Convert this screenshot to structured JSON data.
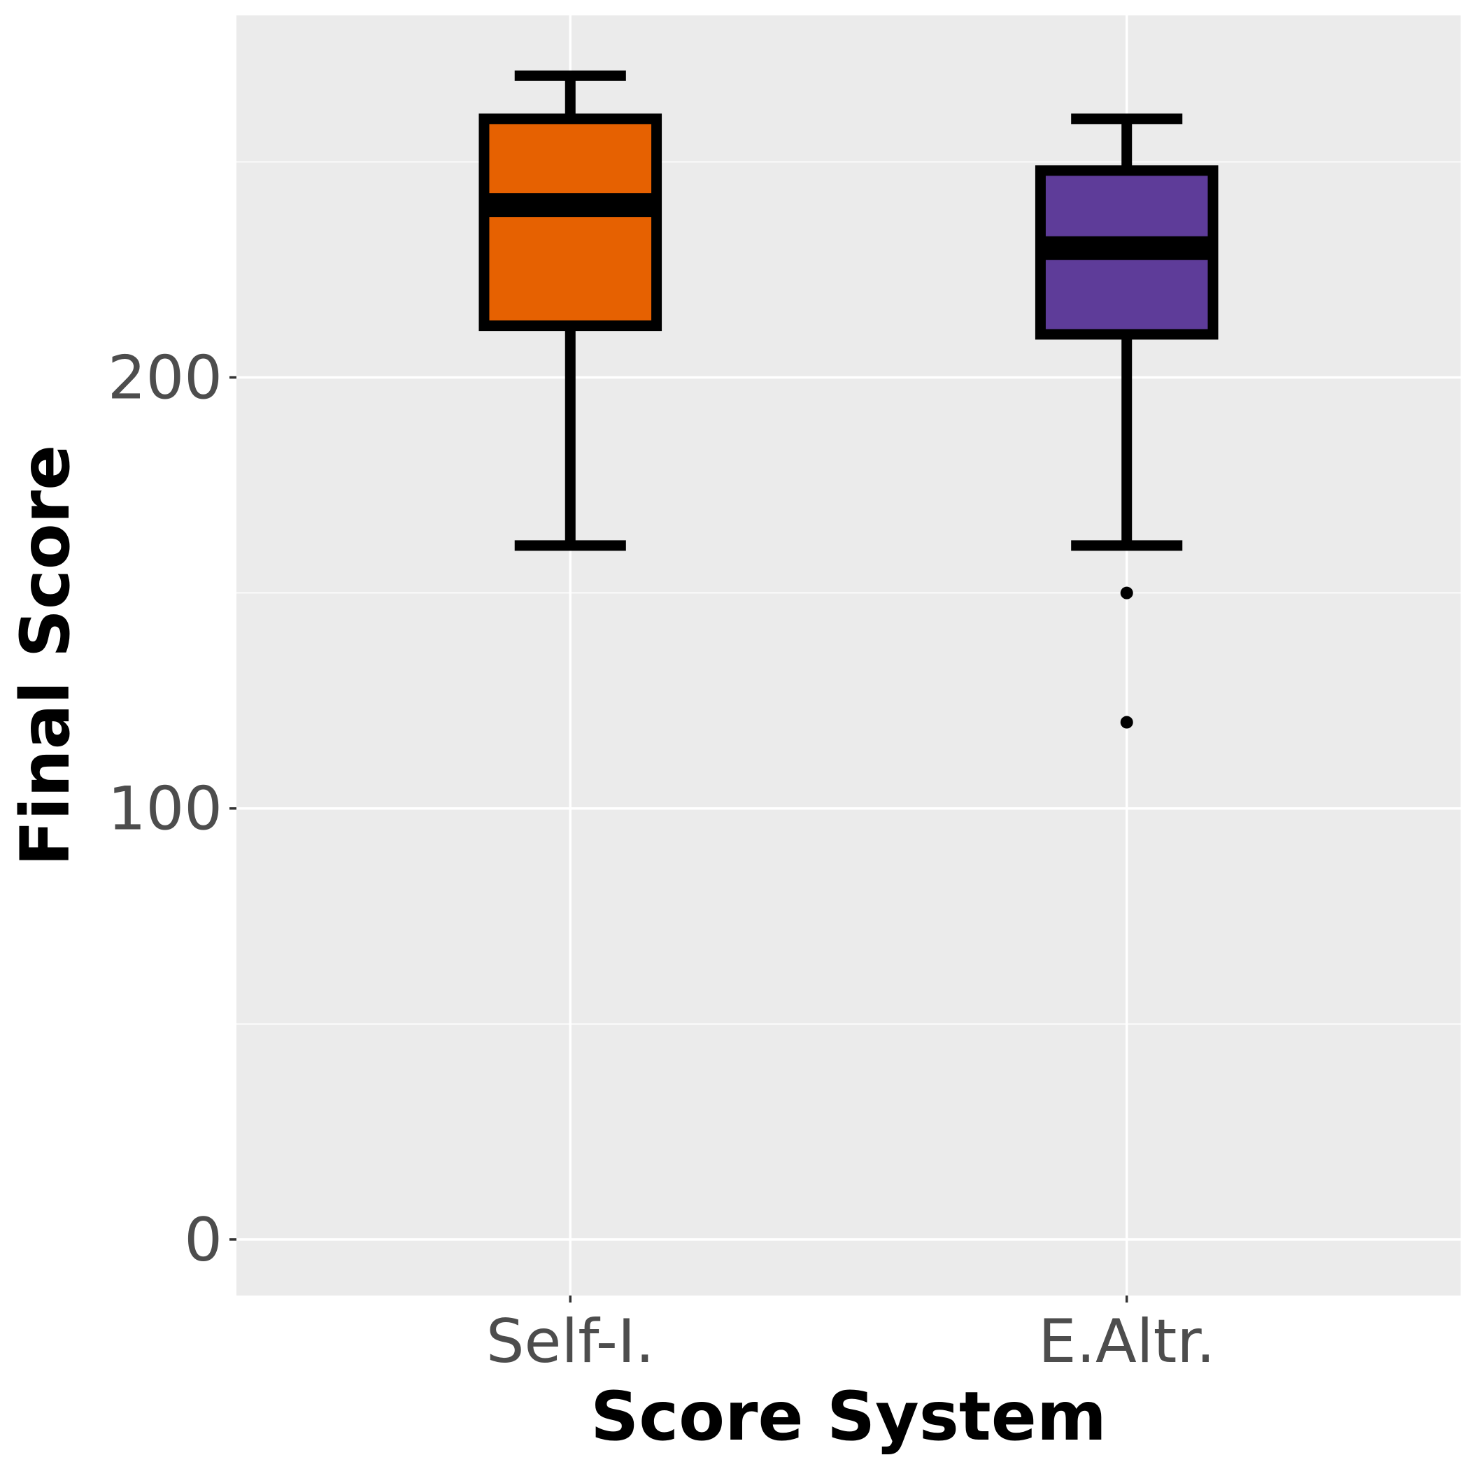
{
  "chart_data": {
    "type": "boxplot",
    "title": "",
    "xlabel": "Score System",
    "ylabel": "Final Score",
    "ylim": [
      -13,
      284
    ],
    "yticks": [
      0,
      100,
      200
    ],
    "y_gridlines_minor": [
      50,
      150,
      250
    ],
    "grid": true,
    "legend": "none",
    "categories": [
      "Self-I.",
      "E.Altr."
    ],
    "boxes": [
      {
        "category": "Self-I.",
        "whisker_low": 161,
        "q1": 212,
        "median": 240,
        "q3": 260,
        "whisker_high": 270,
        "outliers": [],
        "fill": "#e66101"
      },
      {
        "category": "E.Altr.",
        "whisker_low": 161,
        "q1": 210,
        "median": 230,
        "q3": 248,
        "whisker_high": 260,
        "outliers": [
          150,
          120
        ],
        "fill": "#5e3c99"
      }
    ],
    "colors": {
      "panel_bg": "#ebebeb",
      "grid": "#ffffff",
      "outline": "#000000"
    }
  }
}
